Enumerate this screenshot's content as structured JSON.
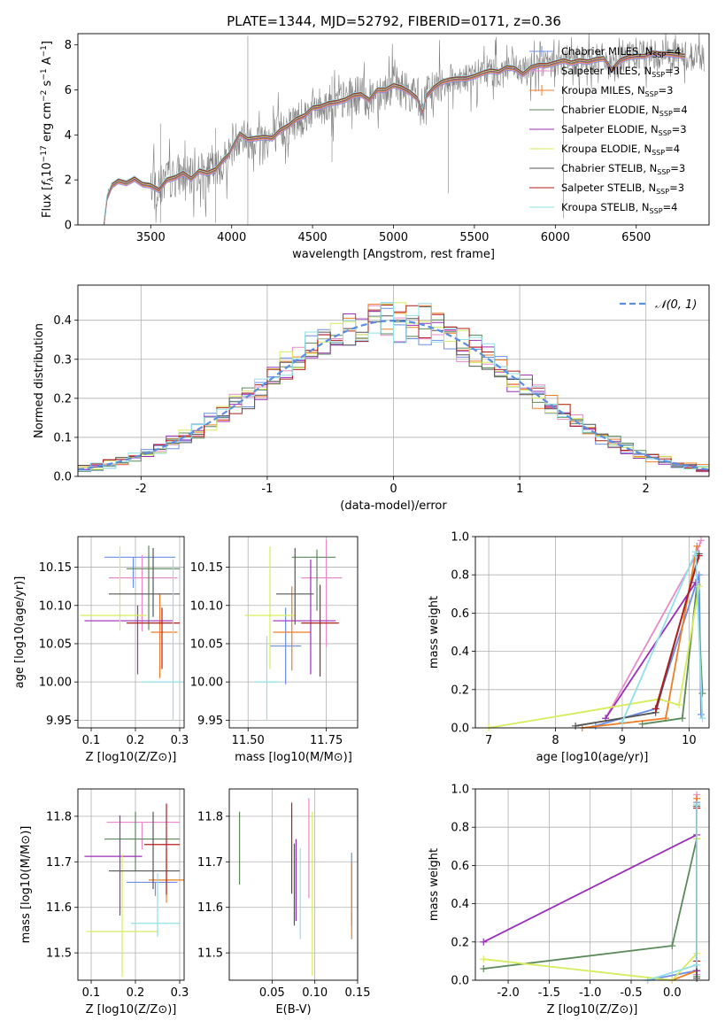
{
  "figure": {
    "title": "PLATE=1344, MJD=52792, FIBERID=0171, z=0.36"
  },
  "models": [
    {
      "label": "Chabrier MILES",
      "nssp": "4",
      "color": "#6a8ee8"
    },
    {
      "label": "Salpeter MILES",
      "nssp": "3",
      "color": "#e88ac8"
    },
    {
      "label": "Kroupa MILES",
      "nssp": "3",
      "color": "#f07d24"
    },
    {
      "label": "Chabrier ELODIE",
      "nssp": "4",
      "color": "#5a8a5a"
    },
    {
      "label": "Salpeter ELODIE",
      "nssp": "3",
      "color": "#9b2eb8"
    },
    {
      "label": "Kroupa ELODIE",
      "nssp": "4",
      "color": "#d6ec5a"
    },
    {
      "label": "Chabrier STELIB",
      "nssp": "3",
      "color": "#555555"
    },
    {
      "label": "Salpeter STELIB",
      "nssp": "3",
      "color": "#b21e1e"
    },
    {
      "label": "Kroupa STELIB",
      "nssp": "4",
      "color": "#8fe0e8"
    }
  ],
  "chart_data": [
    {
      "id": "spectrum",
      "type": "line",
      "title": "PLATE=1344, MJD=52792, FIBERID=0171, z=0.36",
      "xlabel": "wavelength [Angstrom, rest frame]",
      "ylabel": "Flux [f_λ 10^-17 erg cm^-2 s^-1 A^-1]",
      "xlim": [
        3050,
        6950
      ],
      "ylim": [
        0,
        8.5
      ],
      "xticks": [
        3500,
        4000,
        4500,
        5000,
        5500,
        6000,
        6500
      ],
      "yticks": [
        0,
        2,
        4,
        6,
        8
      ],
      "legend_position": "top-right",
      "data_series": {
        "name": "data",
        "color": "#808080"
      },
      "model_envelope": {
        "x": [
          3210,
          3230,
          3260,
          3300,
          3350,
          3400,
          3450,
          3500,
          3550,
          3600,
          3650,
          3700,
          3750,
          3800,
          3850,
          3900,
          3950,
          3980,
          4000,
          4050,
          4100,
          4150,
          4200,
          4250,
          4300,
          4350,
          4400,
          4450,
          4500,
          4550,
          4600,
          4650,
          4700,
          4750,
          4800,
          4850,
          4900,
          4950,
          5000,
          5050,
          5100,
          5150,
          5180,
          5200,
          5250,
          5300,
          5350,
          5400,
          5450,
          5500,
          5550,
          5600,
          5650,
          5700,
          5750,
          5800,
          5850,
          5900,
          5950,
          6000,
          6050,
          6100,
          6150,
          6200,
          6250,
          6300,
          6350,
          6400,
          6450,
          6500,
          6550,
          6600,
          6650,
          6700,
          6750,
          6800
        ],
        "y": [
          0.0,
          1.2,
          1.75,
          1.95,
          1.85,
          2.05,
          1.8,
          1.75,
          1.55,
          2.0,
          2.1,
          2.3,
          2.05,
          2.4,
          2.3,
          2.45,
          2.9,
          3.1,
          3.4,
          4.05,
          3.8,
          3.85,
          3.9,
          3.85,
          4.2,
          4.4,
          4.7,
          4.85,
          5.2,
          5.25,
          5.4,
          5.45,
          5.55,
          5.75,
          5.8,
          5.55,
          6.0,
          6.0,
          6.2,
          6.1,
          5.9,
          5.6,
          5.0,
          5.7,
          6.1,
          6.35,
          6.45,
          6.5,
          6.5,
          6.6,
          6.75,
          6.85,
          6.8,
          7.0,
          6.95,
          6.7,
          7.0,
          7.1,
          7.1,
          7.2,
          7.3,
          7.2,
          7.3,
          7.25,
          7.35,
          7.4,
          6.9,
          7.3,
          7.45,
          7.5,
          7.5,
          7.65,
          7.6,
          7.6,
          7.55,
          7.5
        ]
      }
    },
    {
      "id": "residual-distribution",
      "type": "line",
      "xlabel": "(data-model)/error",
      "ylabel": "Normed distribution",
      "xlim": [
        -2.5,
        2.5
      ],
      "ylim": [
        0,
        0.49
      ],
      "xticks": [
        -2,
        -1,
        0,
        1,
        2
      ],
      "yticks": [
        0.0,
        0.1,
        0.2,
        0.3,
        0.4
      ],
      "grid": true,
      "legend_position": "top-right",
      "reference_curve": {
        "name": "𝒩(0, 1)",
        "style": "dashed",
        "color": "#5a8ee0"
      },
      "histogram": {
        "bin_width": 0.1,
        "range": [
          -2.5,
          2.5
        ]
      }
    },
    {
      "id": "age-vs-metallicity",
      "type": "scatter",
      "xlabel": "Z [log10(Z/Z⊙)]",
      "ylabel": "age  [log10(age/yr)]",
      "xlim": [
        0.07,
        0.31
      ],
      "ylim": [
        9.94,
        10.19
      ],
      "xticks": [
        0.1,
        0.2,
        0.3
      ],
      "yticks": [
        9.95,
        10.0,
        10.05,
        10.1,
        10.15
      ],
      "grid": true,
      "points": [
        {
          "x": 0.195,
          "y": 10.163,
          "xerr": [
            0.065,
            0.095
          ],
          "yerr": [
            0.04,
            0.0
          ]
        },
        {
          "x": 0.215,
          "y": 10.136,
          "xerr": [
            0.075,
            0.08
          ],
          "yerr": [
            0.07,
            0.03
          ]
        },
        {
          "x": 0.255,
          "y": 10.065,
          "xerr": [
            0.02,
            0.04
          ],
          "yerr": [
            0.06,
            0.05
          ]
        },
        {
          "x": 0.23,
          "y": 10.148,
          "xerr": [
            0.05,
            0.07
          ],
          "yerr": [
            0.08,
            0.03
          ]
        },
        {
          "x": 0.205,
          "y": 10.08,
          "xerr": [
            0.12,
            0.08
          ],
          "yerr": [
            0.07,
            0.02
          ]
        },
        {
          "x": 0.165,
          "y": 10.087,
          "xerr": [
            0.09,
            0.06
          ],
          "yerr": [
            0.02,
            0.09
          ]
        },
        {
          "x": 0.24,
          "y": 10.115,
          "xerr": [
            0.1,
            0.06
          ],
          "yerr": [
            0.03,
            0.06
          ]
        },
        {
          "x": 0.26,
          "y": 10.077,
          "xerr": [
            0.08,
            0.04
          ],
          "yerr": [
            0.06,
            0.02
          ]
        },
        {
          "x": 0.285,
          "y": 10.0,
          "xerr": [
            0.07,
            0.02
          ],
          "yerr": [
            0.05,
            0.16
          ]
        }
      ]
    },
    {
      "id": "age-vs-mass",
      "type": "scatter",
      "xlabel": "mass [log10(M/M⊙)]",
      "ylabel": "",
      "xlim": [
        11.44,
        11.85
      ],
      "ylim": [
        9.94,
        10.19
      ],
      "xticks": [
        11.5,
        11.75
      ],
      "yticks": [
        9.95,
        10.0,
        10.05,
        10.1,
        10.15
      ],
      "grid": true,
      "points": [
        {
          "x": 11.62,
          "y": 10.047,
          "xerr": [
            0.05,
            0.05
          ],
          "yerr": [
            0.05,
            0.05
          ]
        },
        {
          "x": 11.75,
          "y": 10.136,
          "xerr": [
            0.08,
            0.05
          ],
          "yerr": [
            0.09,
            0.05
          ]
        },
        {
          "x": 11.64,
          "y": 10.065,
          "xerr": [
            0.06,
            0.06
          ],
          "yerr": [
            0.05,
            0.06
          ]
        },
        {
          "x": 11.72,
          "y": 10.163,
          "xerr": [
            0.08,
            0.06
          ],
          "yerr": [
            0.07,
            0.01
          ]
        },
        {
          "x": 11.7,
          "y": 10.08,
          "xerr": [
            0.12,
            0.08
          ],
          "yerr": [
            0.07,
            0.08
          ]
        },
        {
          "x": 11.57,
          "y": 10.087,
          "xerr": [
            0.08,
            0.08
          ],
          "yerr": [
            0.07,
            0.09
          ]
        },
        {
          "x": 11.65,
          "y": 10.115,
          "xerr": [
            0.06,
            0.06
          ],
          "yerr": [
            0.04,
            0.06
          ]
        },
        {
          "x": 11.73,
          "y": 10.077,
          "xerr": [
            0.06,
            0.06
          ],
          "yerr": [
            0.07,
            0.05
          ]
        },
        {
          "x": 11.56,
          "y": 10.0,
          "xerr": [
            0.04,
            0.04
          ],
          "yerr": [
            0.05,
            0.06
          ]
        }
      ]
    },
    {
      "id": "mass-weight-vs-age",
      "type": "line",
      "xlabel": "age  [log10(age/yr)]",
      "ylabel": "mass weight",
      "xlim": [
        6.8,
        10.3
      ],
      "ylim": [
        0.0,
        1.0
      ],
      "xticks": [
        7,
        8,
        9,
        10
      ],
      "yticks": [
        0.0,
        0.2,
        0.4,
        0.6,
        0.8,
        1.0
      ],
      "grid": true,
      "series": [
        {
          "x": [
            8.6,
            9.5,
            10.15,
            10.18
          ],
          "y": [
            0.01,
            0.1,
            0.8,
            0.07
          ]
        },
        {
          "x": [
            8.75,
            10.1,
            10.18
          ],
          "y": [
            0.05,
            0.9,
            0.98
          ]
        },
        {
          "x": [
            8.4,
            9.65,
            10.12
          ],
          "y": [
            0.0,
            0.05,
            0.95
          ]
        },
        {
          "x": [
            9.3,
            9.9,
            10.12,
            10.2
          ],
          "y": [
            0.02,
            0.05,
            0.75,
            0.18
          ]
        },
        {
          "x": [
            8.75,
            10.1
          ],
          "y": [
            0.05,
            0.76
          ]
        },
        {
          "x": [
            7.0,
            9.55,
            9.85,
            10.15
          ],
          "y": [
            0.0,
            0.15,
            0.12,
            0.74
          ]
        },
        {
          "x": [
            8.3,
            9.5,
            10.15
          ],
          "y": [
            0.01,
            0.08,
            0.91
          ]
        },
        {
          "x": [
            9.5,
            10.15
          ],
          "y": [
            0.1,
            0.9
          ]
        },
        {
          "x": [
            9.0,
            10.1,
            10.2
          ],
          "y": [
            0.03,
            0.92,
            0.05
          ]
        }
      ]
    },
    {
      "id": "mass-vs-metallicity",
      "type": "scatter",
      "xlabel": "Z [log10(Z/Z⊙)]",
      "ylabel": "mass [log10(M/M⊙)]",
      "xlim": [
        0.07,
        0.31
      ],
      "ylim": [
        11.44,
        11.86
      ],
      "xticks": [
        0.1,
        0.2,
        0.3
      ],
      "yticks": [
        11.5,
        11.6,
        11.7,
        11.8
      ],
      "grid": true,
      "points": [
        {
          "x": 0.245,
          "y": 11.655,
          "xerr": [
            0.065,
            0.05
          ],
          "yerr": [
            0.03,
            0.0
          ]
        },
        {
          "x": 0.215,
          "y": 11.787,
          "xerr": [
            0.08,
            0.085
          ],
          "yerr": [
            0.06,
            0.0
          ]
        },
        {
          "x": 0.27,
          "y": 11.66,
          "xerr": [
            0.04,
            0.04
          ],
          "yerr": [
            0.05,
            0.07
          ]
        },
        {
          "x": 0.2,
          "y": 11.75,
          "xerr": [
            0.07,
            0.1
          ],
          "yerr": [
            0.07,
            0.06
          ]
        },
        {
          "x": 0.165,
          "y": 11.712,
          "xerr": [
            0.08,
            0.05
          ],
          "yerr": [
            0.13,
            0.09
          ]
        },
        {
          "x": 0.17,
          "y": 11.547,
          "xerr": [
            0.08,
            0.08
          ],
          "yerr": [
            0.1,
            0.17
          ]
        },
        {
          "x": 0.24,
          "y": 11.68,
          "xerr": [
            0.1,
            0.06
          ],
          "yerr": [
            0.04,
            0.13
          ]
        },
        {
          "x": 0.27,
          "y": 11.738,
          "xerr": [
            0.05,
            0.03
          ],
          "yerr": [
            0.11,
            0.09
          ]
        },
        {
          "x": 0.25,
          "y": 11.565,
          "xerr": [
            0.06,
            0.05
          ],
          "yerr": [
            0.03,
            0.11
          ]
        }
      ]
    },
    {
      "id": "mass-vs-extinction",
      "type": "scatter",
      "xlabel": "E(B-V)",
      "ylabel": "",
      "xlim": [
        0.0,
        0.15
      ],
      "ylim": [
        11.44,
        11.86
      ],
      "xticks": [
        0.05,
        0.1,
        0.15
      ],
      "yticks": [
        11.5,
        11.6,
        11.7,
        11.8
      ],
      "grid": true,
      "points": [
        {
          "x": 0.143,
          "y": 11.62,
          "yerr": [
            0.06,
            0.1
          ]
        },
        {
          "x": 0.093,
          "y": 11.73,
          "yerr": [
            0.11,
            0.11
          ]
        },
        {
          "x": 0.143,
          "y": 11.61,
          "yerr": [
            0.08,
            0.09
          ]
        },
        {
          "x": 0.012,
          "y": 11.73,
          "yerr": [
            0.08,
            0.08
          ]
        },
        {
          "x": 0.078,
          "y": 11.66,
          "yerr": [
            0.09,
            0.09
          ]
        },
        {
          "x": 0.097,
          "y": 11.61,
          "yerr": [
            0.16,
            0.2
          ]
        },
        {
          "x": 0.076,
          "y": 11.62,
          "yerr": [
            0.06,
            0.12
          ]
        },
        {
          "x": 0.073,
          "y": 11.73,
          "yerr": [
            0.1,
            0.1
          ]
        },
        {
          "x": 0.083,
          "y": 11.61,
          "yerr": [
            0.08,
            0.12
          ]
        }
      ]
    },
    {
      "id": "mass-weight-vs-metallicity",
      "type": "line",
      "xlabel": "Z [log10(Z/Z⊙)]",
      "ylabel": "mass weight",
      "xlim": [
        -2.4,
        0.45
      ],
      "ylim": [
        0.0,
        1.0
      ],
      "xticks": [
        -2.0,
        -1.5,
        -1.0,
        -0.5,
        0.0
      ],
      "yticks": [
        0.0,
        0.2,
        0.4,
        0.6,
        0.8,
        1.0
      ],
      "grid": true,
      "series": [
        {
          "x": [
            -0.3,
            0.3,
            0.3
          ],
          "y": [
            0.0,
            0.05,
            0.93
          ]
        },
        {
          "x": [
            0.3,
            0.3
          ],
          "y": [
            0.03,
            0.97
          ]
        },
        {
          "x": [
            0.0,
            0.3,
            0.3
          ],
          "y": [
            0.0,
            0.05,
            0.95
          ]
        },
        {
          "x": [
            -2.3,
            0.0,
            0.3,
            0.3
          ],
          "y": [
            0.06,
            0.18,
            0.74,
            0.02
          ]
        },
        {
          "x": [
            -2.3,
            0.3,
            0.3
          ],
          "y": [
            0.2,
            0.76,
            0.05
          ]
        },
        {
          "x": [
            -2.3,
            0.0,
            0.3,
            0.3
          ],
          "y": [
            0.11,
            0.0,
            0.14,
            0.74
          ]
        },
        {
          "x": [
            0.3,
            0.3
          ],
          "y": [
            0.01,
            0.91
          ]
        },
        {
          "x": [
            0.3,
            0.3
          ],
          "y": [
            0.1,
            0.9
          ]
        },
        {
          "x": [
            -0.3,
            0.3,
            0.3
          ],
          "y": [
            0.0,
            0.08,
            0.92
          ]
        }
      ]
    }
  ]
}
